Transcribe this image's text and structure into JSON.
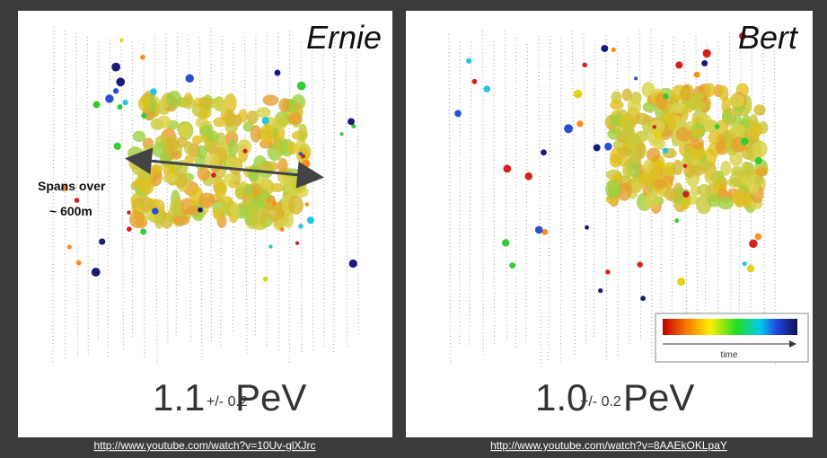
{
  "panels": [
    {
      "title": "Ernie",
      "energy": "1.1",
      "uncertainty": "+/- 0.2",
      "unit": "PeV",
      "annotation": [
        "Spans over",
        "~ 600m"
      ],
      "url": "http://www.youtube.com/watch?v=10Uv-glXJrc"
    },
    {
      "title": "Bert",
      "energy": "1.0",
      "uncertainty": "+/- 0.2",
      "unit": "PeV",
      "legend_label": "time",
      "url": "http://www.youtube.com/watch?v=8AAEkOKLpaY"
    }
  ]
}
